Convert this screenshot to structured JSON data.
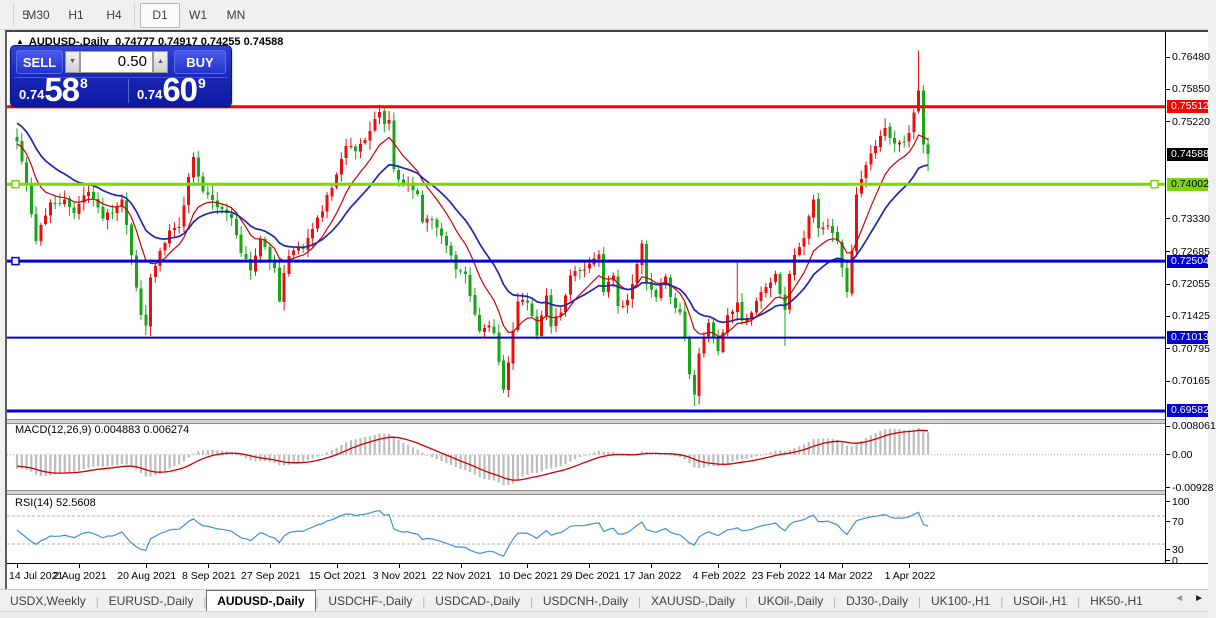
{
  "toolbar": {
    "partial_button": "5",
    "timeframes": [
      "M30",
      "H1",
      "H4",
      "D1",
      "W1",
      "MN"
    ],
    "selected": "D1"
  },
  "window_header": {
    "collapse_arrow": "▲",
    "symbol_title": "AUDUSD-,Daily",
    "ohlc_text": "0.74777 0.74917 0.74255 0.74588"
  },
  "trade_panel": {
    "sell_label": "SELL",
    "buy_label": "BUY",
    "volume": "0.50",
    "spin_down_icon": "▼",
    "spin_up_icon": "▲",
    "sell_price": {
      "small": "0.74",
      "big": "58",
      "sup": "8"
    },
    "buy_price": {
      "small": "0.74",
      "big": "60",
      "sup": "9"
    }
  },
  "price_axis": {
    "plain_ticks": [
      "0.76480",
      "0.75850",
      "0.75220",
      "0.73330",
      "0.72685",
      "0.72055",
      "0.71425",
      "0.70795",
      "0.70165"
    ],
    "badges": [
      {
        "value": "0.75512",
        "bg": "#fe0000",
        "fg": "#ffffff"
      },
      {
        "value": "0.74588",
        "bg": "#000000",
        "fg": "#ffffff"
      },
      {
        "value": "0.74002",
        "bg": "#7fd40c",
        "fg": "#000000"
      },
      {
        "value": "0.72504",
        "bg": "#0000d2",
        "fg": "#ffffff"
      },
      {
        "value": "0.71013",
        "bg": "#0000d2",
        "fg": "#ffffff"
      },
      {
        "value": "0.69582",
        "bg": "#0000d2",
        "fg": "#ffffff"
      }
    ]
  },
  "date_axis": {
    "labels": [
      "14 Jul 2021",
      "2 Aug 2021",
      "20 Aug 2021",
      "8 Sep 2021",
      "27 Sep 2021",
      "15 Oct 2021",
      "3 Nov 2021",
      "22 Nov 2021",
      "10 Dec 2021",
      "29 Dec 2021",
      "17 Jan 2022",
      "4 Feb 2022",
      "23 Feb 2022",
      "14 Mar 2022",
      "1 Apr 2022"
    ],
    "indices": [
      0,
      13,
      27,
      40,
      53,
      67,
      80,
      93,
      107,
      120,
      133,
      147,
      160,
      173,
      187
    ]
  },
  "tabs": {
    "items": [
      "USDX,Weekly",
      "EURUSD-,Daily",
      "AUDUSD-,Daily",
      "USDCHF-,Daily",
      "USDCAD-,Daily",
      "USDCNH-,Daily",
      "XAUUSD-,Daily",
      "UKOil-,Daily",
      "DJ30-,Daily",
      "UK100-,H1",
      "USOil-,H1",
      "HK50-,H1"
    ],
    "active": "AUDUSD-,Daily",
    "scroll_left_icon": "◄",
    "scroll_right_icon": "►"
  },
  "chart_data": {
    "type": "candlestick",
    "symbol": "AUDUSD-",
    "timeframe": "Daily",
    "current_bid": "0.74588",
    "current_ask": "0.74609",
    "last_candle": {
      "open": 0.74777,
      "high": 0.74917,
      "low": 0.74255,
      "close": 0.74588
    },
    "ylim": [
      0.69426,
      0.76969
    ],
    "num_candles": 192,
    "close_waypoints": [
      [
        0,
        0.7483
      ],
      [
        2,
        0.74
      ],
      [
        4,
        0.729
      ],
      [
        7,
        0.7365
      ],
      [
        10,
        0.737
      ],
      [
        12,
        0.7344
      ],
      [
        13,
        0.7362
      ],
      [
        15,
        0.7385
      ],
      [
        17,
        0.7355
      ],
      [
        18,
        0.7333
      ],
      [
        20,
        0.7345
      ],
      [
        22,
        0.737
      ],
      [
        24,
        0.7262
      ],
      [
        26,
        0.7145
      ],
      [
        27,
        0.7125
      ],
      [
        28,
        0.7218
      ],
      [
        30,
        0.727
      ],
      [
        32,
        0.731
      ],
      [
        34,
        0.7317
      ],
      [
        37,
        0.7453
      ],
      [
        39,
        0.7386
      ],
      [
        42,
        0.7356
      ],
      [
        45,
        0.7334
      ],
      [
        47,
        0.7266
      ],
      [
        49,
        0.7232
      ],
      [
        51,
        0.7293
      ],
      [
        54,
        0.7237
      ],
      [
        55,
        0.7172
      ],
      [
        56,
        0.7227
      ],
      [
        57,
        0.726
      ],
      [
        60,
        0.7274
      ],
      [
        62,
        0.7313
      ],
      [
        64,
        0.7347
      ],
      [
        65,
        0.7379
      ],
      [
        67,
        0.7419
      ],
      [
        69,
        0.7475
      ],
      [
        71,
        0.7465
      ],
      [
        74,
        0.7504
      ],
      [
        76,
        0.7541
      ],
      [
        77,
        0.7518
      ],
      [
        78,
        0.7525
      ],
      [
        79,
        0.743
      ],
      [
        81,
        0.74
      ],
      [
        82,
        0.7403
      ],
      [
        84,
        0.7381
      ],
      [
        85,
        0.7327
      ],
      [
        87,
        0.733
      ],
      [
        89,
        0.73
      ],
      [
        92,
        0.7234
      ],
      [
        94,
        0.7225
      ],
      [
        97,
        0.7114
      ],
      [
        99,
        0.7125
      ],
      [
        100,
        0.711
      ],
      [
        102,
        0.7
      ],
      [
        103,
        0.7053
      ],
      [
        105,
        0.7172
      ],
      [
        107,
        0.717
      ],
      [
        109,
        0.7105
      ],
      [
        111,
        0.7183
      ],
      [
        112,
        0.7123
      ],
      [
        114,
        0.715
      ],
      [
        116,
        0.7222
      ],
      [
        120,
        0.7246
      ],
      [
        122,
        0.7263
      ],
      [
        123,
        0.719
      ],
      [
        125,
        0.7222
      ],
      [
        126,
        0.7163
      ],
      [
        128,
        0.7175
      ],
      [
        131,
        0.7285
      ],
      [
        132,
        0.721
      ],
      [
        134,
        0.718
      ],
      [
        136,
        0.722
      ],
      [
        137,
        0.718
      ],
      [
        139,
        0.715
      ],
      [
        140,
        0.71
      ],
      [
        141,
        0.703
      ],
      [
        142,
        0.699
      ],
      [
        143,
        0.707
      ],
      [
        145,
        0.713
      ],
      [
        147,
        0.7075
      ],
      [
        149,
        0.7145
      ],
      [
        151,
        0.717
      ],
      [
        152,
        0.7135
      ],
      [
        154,
        0.715
      ],
      [
        156,
        0.719
      ],
      [
        159,
        0.7225
      ],
      [
        161,
        0.7155
      ],
      [
        162,
        0.7225
      ],
      [
        163,
        0.7262
      ],
      [
        165,
        0.7295
      ],
      [
        167,
        0.737
      ],
      [
        168,
        0.7315
      ],
      [
        170,
        0.732
      ],
      [
        172,
        0.729
      ],
      [
        174,
        0.719
      ],
      [
        175,
        0.727
      ],
      [
        176,
        0.738
      ],
      [
        177,
        0.741
      ],
      [
        179,
        0.746
      ],
      [
        182,
        0.751
      ],
      [
        183,
        0.749
      ],
      [
        185,
        0.7482
      ],
      [
        186,
        0.7482
      ],
      [
        187,
        0.75
      ],
      [
        188,
        0.754
      ],
      [
        189,
        0.7583
      ],
      [
        190,
        0.7478
      ],
      [
        191,
        0.74588
      ]
    ],
    "extremes": [
      {
        "i": 27,
        "low": 0.7106
      },
      {
        "i": 55,
        "low": 0.717
      },
      {
        "i": 76,
        "high": 0.7555
      },
      {
        "i": 102,
        "low": 0.6993
      },
      {
        "i": 142,
        "low": 0.6968
      },
      {
        "i": 151,
        "high": 0.7249
      },
      {
        "i": 161,
        "low": 0.7085
      },
      {
        "i": 189,
        "high": 0.7661
      }
    ],
    "colors": {
      "bull": "#e80f0f",
      "bear": "#16a616",
      "ma_fast": "#cc0000",
      "ma_slow": "#2424aa",
      "hline_red": "#fe0000",
      "hline_green": "#7fd40c",
      "hline_blue": "#0000d2",
      "macd_hist": "#bdbdbd",
      "macd_signal": "#cc0000",
      "rsi_line": "#4090d8"
    },
    "hlines": [
      {
        "price": 0.75512,
        "color": "#fe0000",
        "width": 3
      },
      {
        "price": 0.74002,
        "color": "#7fd40c",
        "width": 3,
        "markers": true
      },
      {
        "price": 0.72504,
        "color": "#0000d2",
        "width": 3,
        "left_marker": true
      },
      {
        "price": 0.71013,
        "color": "#0000d2",
        "width": 2
      },
      {
        "price": 0.69582,
        "color": "#0000d2",
        "width": 3
      }
    ],
    "ma": {
      "fast_period": 10,
      "slow_period": 21,
      "fast_seed": 0.7478,
      "slow_seed": 0.7523
    },
    "macd": {
      "label": "MACD(12,26,9) 0.004883 0.006274",
      "params": [
        12,
        26,
        9
      ],
      "main_value": "0.004883",
      "signal_value": "0.006274",
      "axis_labels": [
        "0.008061",
        "0.00",
        "-0.00928"
      ],
      "axis_values": [
        0.008061,
        0.0,
        -0.00928
      ],
      "ylim": [
        -0.0105,
        0.0092
      ],
      "seeds": {
        "ema12": 0.7472,
        "ema26": 0.7516,
        "signal": -0.003
      }
    },
    "rsi": {
      "label": "RSI(14) 52.5608",
      "period": 14,
      "value": "52.5608",
      "axis_labels": [
        "100",
        "70",
        "30",
        "0"
      ],
      "axis_values": [
        100,
        70,
        30,
        0
      ],
      "levels": [
        70,
        30
      ]
    }
  }
}
